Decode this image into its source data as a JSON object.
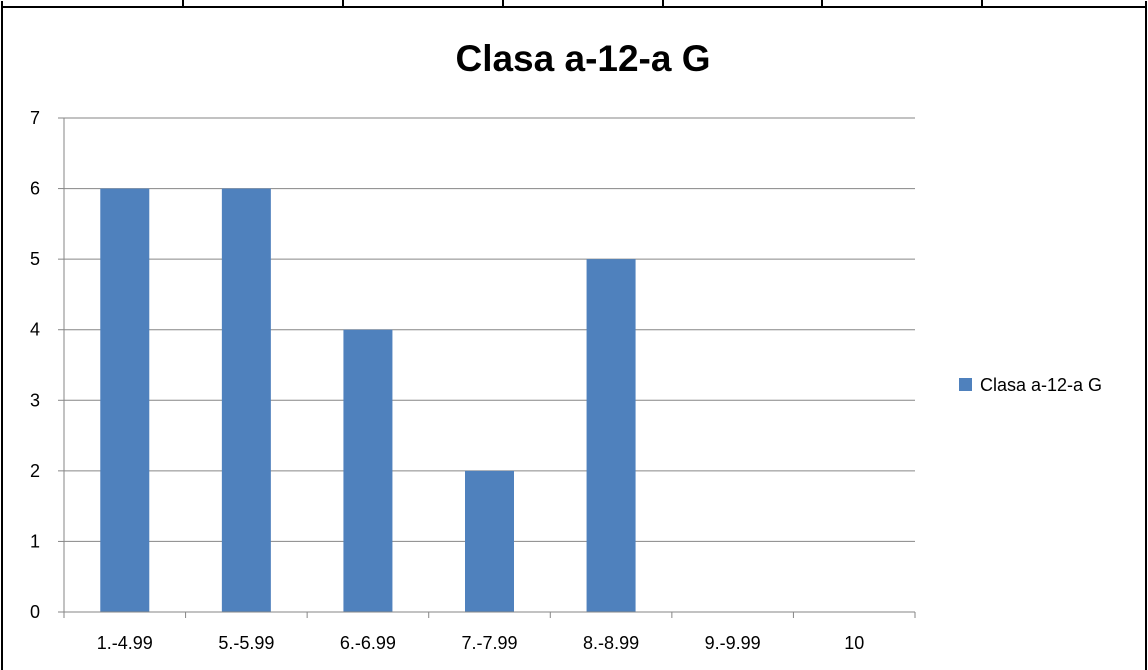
{
  "chart_data": {
    "type": "bar",
    "title": "Clasa a-12-a G",
    "categories": [
      "1.-4.99",
      "5.-5.99",
      "6.-6.99",
      "7.-7.99",
      "8.-8.99",
      "9.-9.99",
      "10"
    ],
    "series": [
      {
        "name": "Clasa a-12-a G",
        "values": [
          6,
          6,
          4,
          2,
          5,
          0,
          0
        ],
        "color": "#4F81BD"
      }
    ],
    "xlabel": "",
    "ylabel": "",
    "ylim": [
      0,
      7
    ],
    "yticks": [
      0,
      1,
      2,
      3,
      4,
      5,
      6,
      7
    ],
    "grid": true,
    "legend_position": "right"
  }
}
